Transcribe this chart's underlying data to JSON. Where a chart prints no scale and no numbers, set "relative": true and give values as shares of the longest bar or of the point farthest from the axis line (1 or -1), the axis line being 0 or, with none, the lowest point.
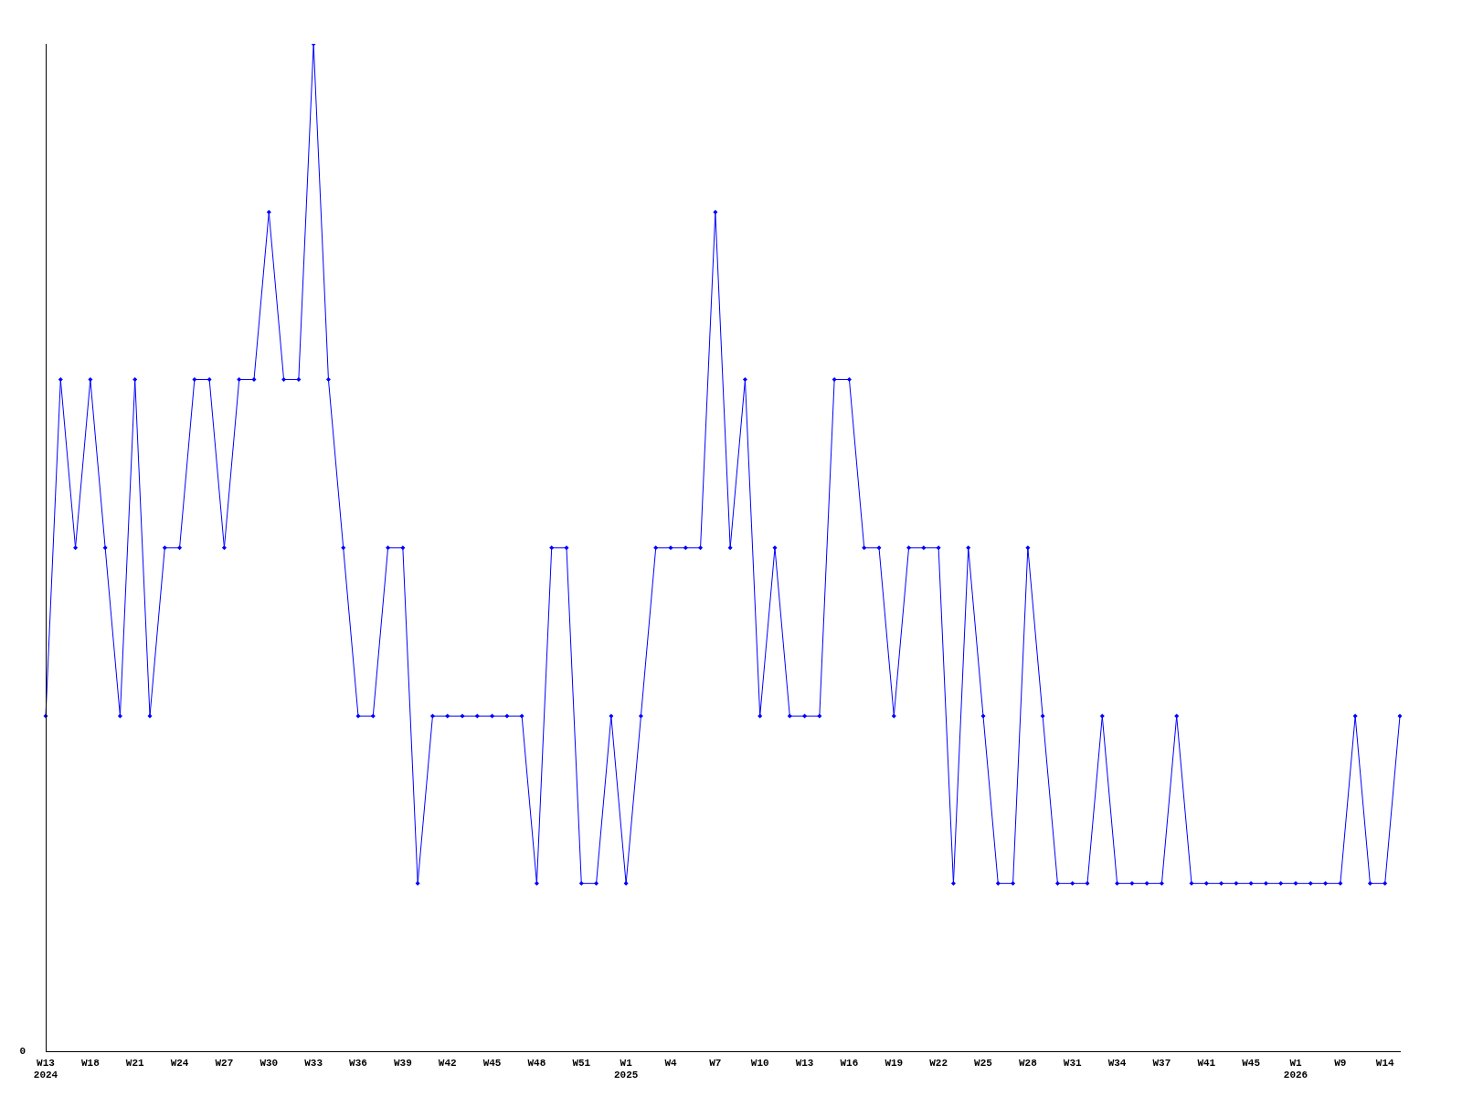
{
  "chart_data": {
    "type": "line",
    "relative": true,
    "marker": "diamond",
    "legend": false,
    "grid": false,
    "annotations": [
      "0"
    ],
    "categories": [
      "W13\n2024",
      null,
      null,
      "W18",
      null,
      null,
      "W21",
      null,
      null,
      "W24",
      null,
      null,
      "W27",
      null,
      null,
      "W30",
      null,
      null,
      "W33",
      null,
      null,
      "W36",
      null,
      null,
      "W39",
      null,
      null,
      "W42",
      null,
      null,
      "W45",
      null,
      null,
      "W48",
      null,
      null,
      "W51",
      null,
      null,
      "W1\n2025",
      null,
      null,
      "W4",
      null,
      null,
      "W7",
      null,
      null,
      "W10",
      null,
      null,
      "W13",
      null,
      null,
      "W16",
      null,
      null,
      "W19",
      null,
      null,
      "W22",
      null,
      null,
      "W25",
      null,
      null,
      "W28",
      null,
      null,
      "W31",
      null,
      null,
      "W34",
      null,
      null,
      "W37",
      null,
      null,
      "W41",
      null,
      null,
      "W45",
      null,
      null,
      "W1\n2026",
      null,
      null,
      "W9",
      null,
      null,
      "W14",
      null
    ],
    "series": [
      {
        "color": "#0000ff",
        "values": [
          0.333,
          0.667,
          0.5,
          0.667,
          0.5,
          0.333,
          0.667,
          0.333,
          0.5,
          0.5,
          0.667,
          0.667,
          0.5,
          0.667,
          0.667,
          0.833,
          0.667,
          0.667,
          1,
          0.667,
          0.5,
          0.333,
          0.333,
          0.5,
          0.5,
          0.167,
          0.333,
          0.333,
          0.333,
          0.333,
          0.333,
          0.333,
          0.333,
          0.167,
          0.5,
          0.5,
          0.167,
          0.167,
          0.333,
          0.167,
          0.333,
          0.5,
          0.5,
          0.5,
          0.5,
          0.833,
          0.5,
          0.667,
          0.333,
          0.5,
          0.333,
          0.333,
          0.333,
          0.667,
          0.667,
          0.5,
          0.5,
          0.333,
          0.5,
          0.5,
          0.5,
          0.167,
          0.5,
          0.333,
          0.167,
          0.167,
          0.5,
          0.333,
          0.167,
          0.167,
          0.167,
          0.333,
          0.167,
          0.167,
          0.167,
          0.167,
          0.333,
          0.167,
          0.167,
          0.167,
          0.167,
          0.167,
          0.167,
          0.167,
          0.167,
          0.167,
          0.167,
          0.167,
          0.333,
          0.167,
          0.167,
          0.333
        ]
      }
    ]
  }
}
